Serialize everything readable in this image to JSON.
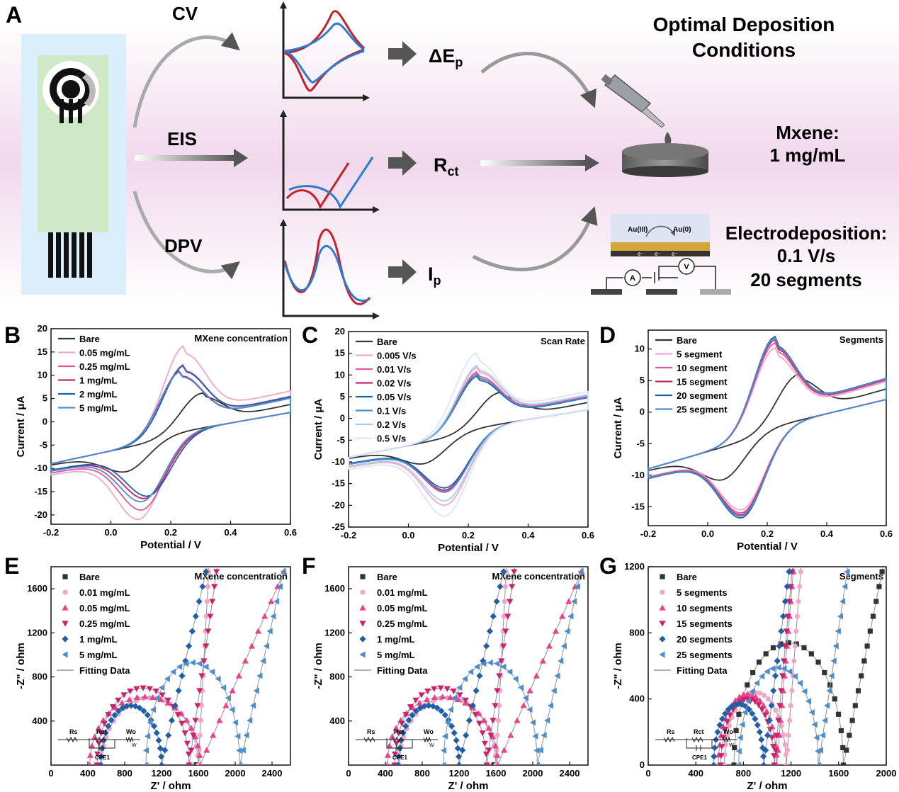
{
  "schematic": {
    "panel_label": "A",
    "method_cv": "CV",
    "method_eis": "EIS",
    "method_dpv": "DPV",
    "out_dep": "ΔE",
    "out_dep_sub": "p",
    "out_rct": "R",
    "out_rct_sub": "ct",
    "out_ip": "I",
    "out_ip_sub": "p",
    "title_line1": "Optimal Deposition",
    "title_line2": "Conditions",
    "mxene_line1": "Mxene:",
    "mxene_line2": "1 mg/mL",
    "electro_line1": "Electrodeposition:",
    "electro_line2": "0.1 V/s",
    "electro_line3": "20 segments",
    "au3": "Au(III)",
    "au0": "Au(0)",
    "electron": "e⁻",
    "ammeter": "A",
    "voltmeter": "V"
  },
  "colors": {
    "black": "#333333",
    "light_pink": "#f4a6c8",
    "pink": "#e05a96",
    "magenta": "#c8246e",
    "dark_blue": "#1f5fa8",
    "mid_blue": "#4a8ed0",
    "light_blue": "#a9cdec",
    "very_light_blue": "#dbe6f4",
    "hot_pink": "#e9438d",
    "fit_gray": "#9a9a9a"
  },
  "chart_data": [
    {
      "panel": "B",
      "type": "line",
      "xlabel": "Potential / V",
      "ylabel": "Current / μA",
      "annotation": "MXene concentration",
      "xlim": [
        -0.2,
        0.6
      ],
      "ylim": [
        -22,
        20
      ],
      "xticks": [
        "-0.2",
        "0.0",
        "0.2",
        "0.4",
        "0.6"
      ],
      "yticks": [
        "-20",
        "-15",
        "-10",
        "-5",
        "0",
        "5",
        "10",
        "15",
        "20"
      ],
      "series": [
        {
          "name": "Bare",
          "color": "black",
          "ipa": 6.2,
          "ipc": -10.8,
          "epa": 0.31,
          "epc": 0.04
        },
        {
          "name": "0.05 mg/mL",
          "color": "light_pink",
          "ipa": 16.5,
          "ipc": -21.0,
          "epa": 0.25,
          "epc": 0.09
        },
        {
          "name": "0.25 mg/mL",
          "color": "pink",
          "ipa": 12.4,
          "ipc": -19.0,
          "epa": 0.25,
          "epc": 0.1
        },
        {
          "name": "1 mg/mL",
          "color": "magenta",
          "ipa": 11.2,
          "ipc": -16.5,
          "epa": 0.24,
          "epc": 0.11
        },
        {
          "name": "2 mg/mL",
          "color": "dark_blue",
          "ipa": 12.2,
          "ipc": -16.0,
          "epa": 0.25,
          "epc": 0.12
        },
        {
          "name": "5 mg/mL",
          "color": "mid_blue",
          "ipa": 11.0,
          "ipc": -17.2,
          "epa": 0.24,
          "epc": 0.1
        }
      ]
    },
    {
      "panel": "C",
      "type": "line",
      "xlabel": "Potential / V",
      "ylabel": "Current / μA",
      "annotation": "Scan Rate",
      "xlim": [
        -0.2,
        0.6
      ],
      "ylim": [
        -25,
        20
      ],
      "xticks": [
        "-0.2",
        "0.0",
        "0.2",
        "0.4",
        "0.6"
      ],
      "yticks": [
        "-25",
        "-20",
        "-15",
        "-10",
        "-5",
        "0",
        "5",
        "10",
        "15",
        "20"
      ],
      "series": [
        {
          "name": "Bare",
          "color": "black",
          "ipa": 6.0,
          "ipc": -10.5,
          "epa": 0.31,
          "epc": 0.04
        },
        {
          "name": "0.005 V/s",
          "color": "light_pink",
          "ipa": 12.0,
          "ipc": -20.0,
          "epa": 0.24,
          "epc": 0.12
        },
        {
          "name": "0.01 V/s",
          "color": "pink",
          "ipa": 11.0,
          "ipc": -17.0,
          "epa": 0.24,
          "epc": 0.12
        },
        {
          "name": "0.02 V/s",
          "color": "magenta",
          "ipa": 10.5,
          "ipc": -16.5,
          "epa": 0.24,
          "epc": 0.12
        },
        {
          "name": "0.05 V/s",
          "color": "dark_blue",
          "ipa": 10.0,
          "ipc": -16.0,
          "epa": 0.24,
          "epc": 0.12
        },
        {
          "name": "0.1 V/s",
          "color": "mid_blue",
          "ipa": 10.5,
          "ipc": -16.8,
          "epa": 0.24,
          "epc": 0.12
        },
        {
          "name": "0.2 V/s",
          "color": "light_blue",
          "ipa": 12.5,
          "ipc": -19.0,
          "epa": 0.24,
          "epc": 0.12
        },
        {
          "name": "0.5 V/s",
          "color": "very_light_blue",
          "ipa": 15.0,
          "ipc": -22.5,
          "epa": 0.23,
          "epc": 0.12
        }
      ]
    },
    {
      "panel": "D",
      "type": "line",
      "xlabel": "Potential / V",
      "ylabel": "Current / μA",
      "annotation": "Segments",
      "xlim": [
        -0.2,
        0.6
      ],
      "ylim": [
        -18,
        13
      ],
      "xticks": [
        "-0.2",
        "0.0",
        "0.2",
        "0.4",
        "0.6"
      ],
      "yticks": [
        "-15",
        "-10",
        "-5",
        "0",
        "5",
        "10"
      ],
      "series": [
        {
          "name": "Bare",
          "color": "black",
          "ipa": 6.0,
          "ipc": -10.8,
          "epa": 0.31,
          "epc": 0.04
        },
        {
          "name": "5  segment",
          "color": "light_pink",
          "ipa": 10.2,
          "ipc": -15.5,
          "epa": 0.23,
          "epc": 0.11
        },
        {
          "name": "10 segment",
          "color": "pink",
          "ipa": 11.0,
          "ipc": -16.0,
          "epa": 0.23,
          "epc": 0.11
        },
        {
          "name": "15 segment",
          "color": "magenta",
          "ipa": 11.5,
          "ipc": -16.3,
          "epa": 0.23,
          "epc": 0.11
        },
        {
          "name": "20 segment",
          "color": "dark_blue",
          "ipa": 12.0,
          "ipc": -16.8,
          "epa": 0.23,
          "epc": 0.11
        },
        {
          "name": "25 segment",
          "color": "mid_blue",
          "ipa": 11.8,
          "ipc": -16.5,
          "epa": 0.23,
          "epc": 0.11
        }
      ]
    },
    {
      "panel": "E",
      "type": "scatter",
      "xlabel": "Z' / ohm",
      "ylabel": "-Z\" / ohm",
      "annotation": "MXene concentration",
      "xlim": [
        0,
        2600
      ],
      "ylim": [
        0,
        1800
      ],
      "xticks": [
        "0",
        "400",
        "800",
        "1200",
        "1600",
        "2000",
        "2400"
      ],
      "yticks": [
        "400",
        "800",
        "1200",
        "1600"
      ],
      "fit_label": "Fitting Data",
      "circuit": {
        "rs": "Rs",
        "rct": "Rct",
        "wo": "Wo",
        "cpe": "CPE1",
        "ws": "W"
      },
      "series": [
        {
          "name": "Bare",
          "color": "black",
          "marker": "square",
          "x0": 1480,
          "x1": 1580,
          "r": 0,
          "x_end": 1580
        },
        {
          "name": "0.01 mg/mL",
          "color": "light_pink",
          "marker": "circle",
          "x0": 550,
          "x1": 1600,
          "r": 610,
          "x_end": 1720
        },
        {
          "name": "0.05 mg/mL",
          "color": "hot_pink",
          "marker": "triangle-up",
          "x0": 420,
          "x1": 1620,
          "r": 620,
          "x_end": 2600
        },
        {
          "name": "0.25 mg/mL",
          "color": "magenta",
          "marker": "triangle-down",
          "x0": 500,
          "x1": 1500,
          "r": 700,
          "x_end": 1820
        },
        {
          "name": "1 mg/mL",
          "color": "dark_blue",
          "marker": "diamond",
          "x0": 540,
          "x1": 1200,
          "r": 540,
          "x_end": 1720
        },
        {
          "name": "5 mg/mL",
          "color": "mid_blue",
          "marker": "triangle-left",
          "x0": 1030,
          "x1": 2050,
          "r": 930,
          "x_end": 2560
        }
      ]
    },
    {
      "panel": "F",
      "type": "scatter",
      "xlabel": "Z' / ohm",
      "ylabel": "-Z\" / ohm",
      "annotation": "MXene concentration",
      "xlim": [
        0,
        2600
      ],
      "ylim": [
        0,
        1800
      ],
      "xticks": [
        "0",
        "400",
        "800",
        "1200",
        "1600",
        "2000",
        "2400"
      ],
      "yticks": [
        "400",
        "800",
        "1200",
        "1600"
      ],
      "fit_label": "Fitting Data",
      "circuit": {
        "rs": "Rs",
        "rct": "Rct",
        "wo": "Wo",
        "cpe": "CPE1",
        "ws": "W"
      },
      "series": [
        {
          "name": "Bare",
          "color": "black",
          "marker": "square",
          "x0": 1480,
          "x1": 1580,
          "r": 0,
          "x_end": 1580
        },
        {
          "name": "0.01 mg/mL",
          "color": "light_pink",
          "marker": "circle",
          "x0": 550,
          "x1": 1600,
          "r": 610,
          "x_end": 1720
        },
        {
          "name": "0.05 mg/mL",
          "color": "hot_pink",
          "marker": "triangle-up",
          "x0": 420,
          "x1": 1620,
          "r": 620,
          "x_end": 2600
        },
        {
          "name": "0.25 mg/mL",
          "color": "magenta",
          "marker": "triangle-down",
          "x0": 500,
          "x1": 1500,
          "r": 700,
          "x_end": 1820
        },
        {
          "name": "1 mg/mL",
          "color": "dark_blue",
          "marker": "diamond",
          "x0": 540,
          "x1": 1200,
          "r": 540,
          "x_end": 1720
        },
        {
          "name": "5 mg/mL",
          "color": "mid_blue",
          "marker": "triangle-left",
          "x0": 1030,
          "x1": 2050,
          "r": 930,
          "x_end": 2560
        }
      ]
    },
    {
      "panel": "G",
      "type": "scatter",
      "xlabel": "Z' / ohm",
      "ylabel": "-Z\" / ohm",
      "annotation": "Segments",
      "xlim": [
        0,
        2000
      ],
      "ylim": [
        0,
        1200
      ],
      "xticks": [
        "0",
        "400",
        "800",
        "1200",
        "1600",
        "2000"
      ],
      "yticks": [
        "0",
        "400",
        "800",
        "1200"
      ],
      "fit_label": "Fitting Data",
      "circuit": {
        "rs": "Rs",
        "rct": "Rct",
        "wo": "Wo",
        "cpe": "CPE1",
        "ws": "W"
      },
      "series": [
        {
          "name": "Bare",
          "color": "black",
          "marker": "square",
          "x0": 720,
          "x1": 1640,
          "r": 740,
          "x_end": 1990
        },
        {
          "name": "5 segments",
          "color": "light_pink",
          "marker": "circle",
          "x0": 640,
          "x1": 1160,
          "r": 440,
          "x_end": 1290
        },
        {
          "name": "10 segments",
          "color": "hot_pink",
          "marker": "triangle-up",
          "x0": 590,
          "x1": 1080,
          "r": 430,
          "x_end": 1230
        },
        {
          "name": "15 segments",
          "color": "magenta",
          "marker": "triangle-down",
          "x0": 610,
          "x1": 1060,
          "r": 400,
          "x_end": 1220
        },
        {
          "name": "20 segments",
          "color": "dark_blue",
          "marker": "diamond",
          "x0": 550,
          "x1": 970,
          "r": 370,
          "x_end": 1200
        },
        {
          "name": "25 segments",
          "color": "mid_blue",
          "marker": "triangle-left",
          "x0": 760,
          "x1": 1430,
          "r": 590,
          "x_end": 1690
        }
      ]
    }
  ]
}
